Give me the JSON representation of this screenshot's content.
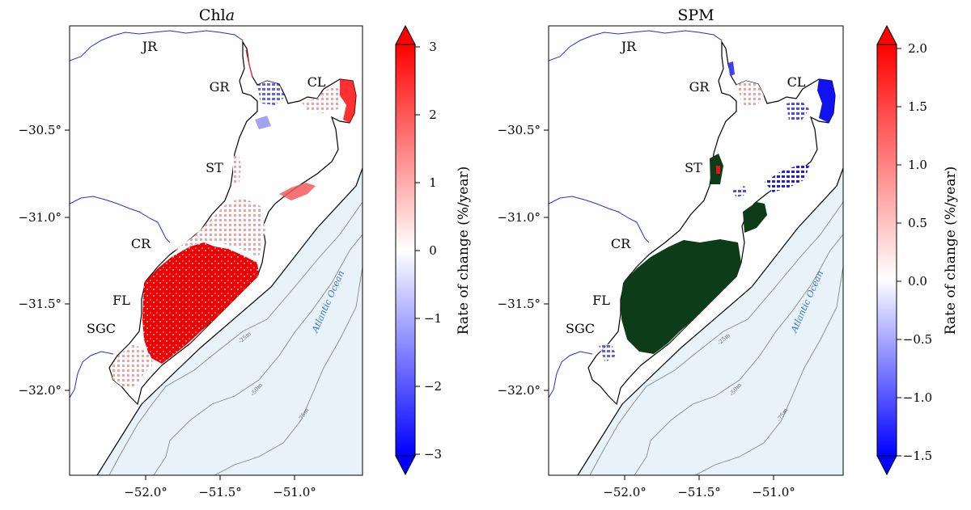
{
  "panels": [
    {
      "id": "chla",
      "title": "Chl",
      "title_italic": "a",
      "y_ticks": [
        "−30.5°",
        "−31.0°",
        "−31.5°",
        "−32.0°"
      ],
      "x_ticks": [
        "−52.0°",
        "−51.5°",
        "−51.0°"
      ],
      "places": [
        "JR",
        "GR",
        "CL",
        "ST",
        "CR",
        "FL",
        "SGC"
      ],
      "contours": [
        "-25m",
        "-50m",
        "-75m"
      ],
      "ocean_label": "Atlantic Ocean",
      "colorbar": {
        "label": "Rate of change (%/year)",
        "min": -3,
        "max": 3,
        "ticks": [
          "3",
          "2",
          "1",
          "0",
          "−1",
          "−2",
          "−3"
        ],
        "extend": "both",
        "cmap": "bwr",
        "low_color": "#0000ff",
        "mid_color": "#ffffff",
        "high_color": "#ff0000"
      }
    },
    {
      "id": "spm",
      "title": "SPM",
      "title_italic": "",
      "y_ticks": [
        "−30.5°",
        "−31.0°",
        "−31.5°",
        "−32.0°"
      ],
      "x_ticks": [
        "−52.0°",
        "−51.5°",
        "−51.0°"
      ],
      "places": [
        "JR",
        "GR",
        "CL",
        "ST",
        "CR",
        "FL",
        "SGC"
      ],
      "contours": [
        "-25m",
        "-50m",
        "-75m"
      ],
      "ocean_label": "Atlantic Ocean",
      "colorbar": {
        "label": "Rate of change (%/year)",
        "min": -1.5,
        "max": 2.0,
        "ticks": [
          "2.0",
          "1.5",
          "1.0",
          "0.5",
          "0.0",
          "−0.5",
          "−1.0",
          "−1.5"
        ],
        "extend": "both",
        "cmap": "bwr",
        "low_color": "#0000ff",
        "mid_color": "#ffffff",
        "high_color": "#ff0000",
        "masked_color": "#0d3d18"
      }
    }
  ],
  "colors": {
    "river": "#1f2fd8",
    "coast": "#000000",
    "ocean": "#e8f3f9",
    "contour": "#888888"
  }
}
